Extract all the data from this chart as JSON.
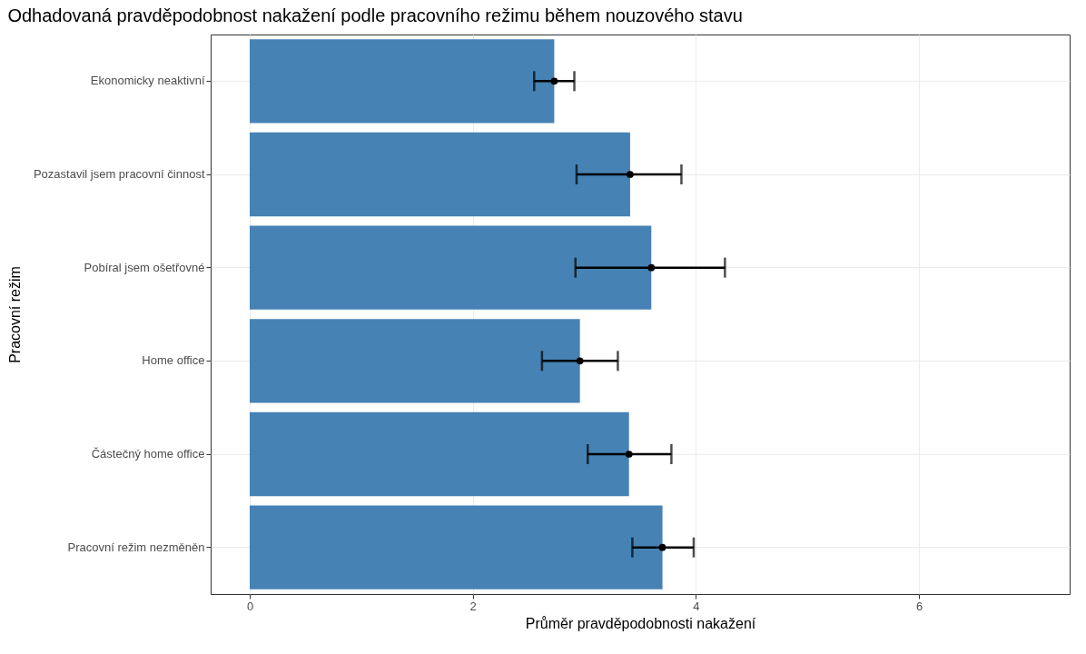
{
  "chart_data": {
    "type": "bar",
    "orientation": "horizontal",
    "title": "Odhadovaná pravděpodobnost nakažení podle pracovního režimu během nouzového stavu",
    "xlabel": "Průměr pravděpodobnosti nakažení",
    "ylabel": "Pracovní režim",
    "categories": [
      "Ekonomicky neaktivní",
      "Pozastavil jsem pracovní činnost",
      "Pobíral jsem ošetřovné",
      "Home office",
      "Částečný home office",
      "Pracovní režim nezměněn"
    ],
    "series": [
      {
        "color": "#4682b4",
        "values": [
          2.73,
          3.41,
          3.6,
          2.96,
          3.4,
          3.7
        ]
      },
      {
        "type": "scatter",
        "color": "#000000",
        "values": [
          2.73,
          3.41,
          3.6,
          2.96,
          3.4,
          3.7
        ],
        "errors": [
          [
            2.55,
            2.91
          ],
          [
            2.93,
            3.87
          ],
          [
            2.92,
            4.26
          ],
          [
            2.62,
            3.3
          ],
          [
            3.03,
            3.78
          ],
          [
            3.43,
            3.98
          ]
        ]
      }
    ],
    "marker": "circle",
    "xlim": [
      -0.35,
      7.35
    ],
    "xticks": [
      0,
      2,
      4,
      6
    ],
    "grid": true
  }
}
